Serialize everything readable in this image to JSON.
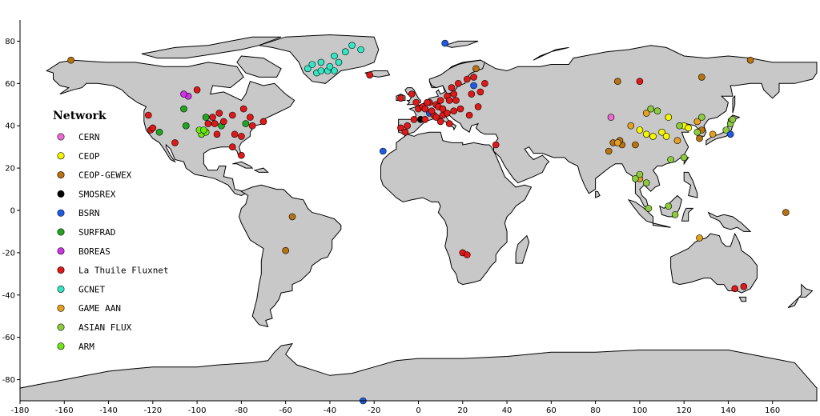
{
  "chart_data": {
    "type": "scatter",
    "xlim": [
      -180,
      180
    ],
    "ylim": [
      -90,
      90
    ],
    "x_ticks": [
      -180,
      -160,
      -140,
      -120,
      -100,
      -80,
      -60,
      -40,
      -20,
      0,
      20,
      40,
      60,
      80,
      100,
      120,
      140,
      160
    ],
    "y_ticks": [
      -80,
      -60,
      -40,
      -20,
      0,
      20,
      40,
      60,
      80
    ],
    "legend": {
      "title": "Network",
      "placement": "left",
      "entries": [
        {
          "name": "CERN",
          "color": "#f06ad6"
        },
        {
          "name": "CEOP",
          "color": "#f5f500"
        },
        {
          "name": "CEOP-GEWEX",
          "color": "#b8720e"
        },
        {
          "name": "SMOSREX",
          "color": "#000000"
        },
        {
          "name": "BSRN",
          "color": "#1c5ae8"
        },
        {
          "name": "SURFRAD",
          "color": "#1fa81f"
        },
        {
          "name": "BOREAS",
          "color": "#d030e6"
        },
        {
          "name": "La Thuile Fluxnet",
          "color": "#e01818"
        },
        {
          "name": "GCNET",
          "color": "#34e6c4"
        },
        {
          "name": "GAME AAN",
          "color": "#e6a020"
        },
        {
          "name": "ASIAN FLUX",
          "color": "#8ccc3c"
        },
        {
          "name": "ARM",
          "color": "#6ee614"
        }
      ]
    },
    "series": [
      {
        "name": "CERN",
        "points": [
          [
            87,
            44
          ]
        ]
      },
      {
        "name": "CEOP",
        "points": [
          [
            100,
            38
          ],
          [
            103,
            36
          ],
          [
            106,
            35
          ],
          [
            110,
            37
          ],
          [
            113,
            44
          ],
          [
            120,
            40
          ],
          [
            122,
            39
          ],
          [
            112,
            35
          ]
        ]
      },
      {
        "name": "CEOP-GEWEX",
        "points": [
          [
            -157,
            71
          ],
          [
            -57,
            -3
          ],
          [
            -60,
            -19
          ],
          [
            26,
            67
          ],
          [
            90,
            61
          ],
          [
            88,
            32
          ],
          [
            92,
            31
          ],
          [
            91,
            33
          ],
          [
            86,
            28
          ],
          [
            98,
            31
          ],
          [
            128,
            63
          ],
          [
            128,
            38
          ],
          [
            127,
            34
          ],
          [
            150,
            71
          ],
          [
            166,
            -1
          ]
        ]
      },
      {
        "name": "SMOSREX",
        "points": [
          [
            1,
            43
          ]
        ]
      },
      {
        "name": "BSRN",
        "points": [
          [
            -16,
            28
          ],
          [
            12,
            79
          ],
          [
            25,
            59
          ],
          [
            141,
            36
          ],
          [
            -25,
            -90
          ],
          [
            5,
            46
          ]
        ]
      },
      {
        "name": "SURFRAD",
        "points": [
          [
            -105,
            40
          ],
          [
            -106,
            48
          ],
          [
            -97,
            37
          ],
          [
            -89,
            40
          ],
          [
            -117,
            37
          ],
          [
            -78,
            41
          ],
          [
            -96,
            44
          ]
        ]
      },
      {
        "name": "BOREAS",
        "points": [
          [
            -104,
            54
          ],
          [
            -106,
            55
          ]
        ]
      },
      {
        "name": "La Thuile Fluxnet",
        "points": [
          [
            -122,
            45
          ],
          [
            -121,
            38
          ],
          [
            -120,
            39
          ],
          [
            -110,
            32
          ],
          [
            -90,
            46
          ],
          [
            -84,
            45
          ],
          [
            -80,
            35
          ],
          [
            -76,
            44
          ],
          [
            -75,
            40
          ],
          [
            -79,
            48
          ],
          [
            -83,
            36
          ],
          [
            -92,
            41
          ],
          [
            -88,
            42
          ],
          [
            -95,
            41
          ],
          [
            -93,
            44
          ],
          [
            -70,
            42
          ],
          [
            -91,
            36
          ],
          [
            -84,
            30
          ],
          [
            -80,
            26
          ],
          [
            -100,
            57
          ],
          [
            -22,
            64
          ],
          [
            -8,
            53
          ],
          [
            -3,
            55
          ],
          [
            -1,
            51
          ],
          [
            0,
            48
          ],
          [
            2,
            49
          ],
          [
            5,
            51
          ],
          [
            8,
            50
          ],
          [
            10,
            52
          ],
          [
            13,
            54
          ],
          [
            16,
            55
          ],
          [
            15,
            58
          ],
          [
            18,
            60
          ],
          [
            22,
            62
          ],
          [
            25,
            63
          ],
          [
            30,
            60
          ],
          [
            -8,
            39
          ],
          [
            -5,
            40
          ],
          [
            -2,
            43
          ],
          [
            3,
            43
          ],
          [
            7,
            45
          ],
          [
            11,
            45
          ],
          [
            13,
            46
          ],
          [
            16,
            47
          ],
          [
            19,
            48
          ],
          [
            10,
            42
          ],
          [
            14,
            41
          ],
          [
            4,
            51
          ],
          [
            6,
            47
          ],
          [
            9,
            49
          ],
          [
            11,
            48
          ],
          [
            8,
            44
          ],
          [
            -6,
            37
          ],
          [
            23,
            45
          ],
          [
            35,
            31
          ],
          [
            27,
            49
          ],
          [
            20,
            -20
          ],
          [
            22,
            -21
          ],
          [
            143,
            -37
          ],
          [
            147,
            -36
          ],
          [
            100,
            61
          ],
          [
            14,
            52
          ],
          [
            17,
            52
          ],
          [
            24,
            55
          ],
          [
            28,
            56
          ],
          [
            3,
            48
          ]
        ]
      },
      {
        "name": "GCNET",
        "points": [
          [
            -50,
            67
          ],
          [
            -48,
            69
          ],
          [
            -46,
            65
          ],
          [
            -44,
            66
          ],
          [
            -41,
            66
          ],
          [
            -38,
            66
          ],
          [
            -36,
            70
          ],
          [
            -33,
            75
          ],
          [
            -38,
            73
          ],
          [
            -30,
            78
          ],
          [
            -26,
            76
          ],
          [
            -44,
            70
          ],
          [
            -40,
            68
          ]
        ]
      },
      {
        "name": "GAME AAN",
        "points": [
          [
            96,
            40
          ],
          [
            103,
            46
          ],
          [
            90,
            32
          ],
          [
            100,
            15
          ],
          [
            127,
            -13
          ],
          [
            117,
            33
          ],
          [
            126,
            42
          ],
          [
            133,
            36
          ]
        ]
      },
      {
        "name": "ASIAN FLUX",
        "points": [
          [
            98,
            15
          ],
          [
            100,
            17
          ],
          [
            103,
            13
          ],
          [
            105,
            48
          ],
          [
            118,
            40
          ],
          [
            126,
            37
          ],
          [
            116,
            -2
          ],
          [
            113,
            2
          ],
          [
            114,
            24
          ],
          [
            120,
            25
          ],
          [
            128,
            44
          ],
          [
            141,
            41
          ],
          [
            142,
            43
          ],
          [
            139,
            38
          ],
          [
            104,
            1
          ],
          [
            108,
            47
          ]
        ]
      },
      {
        "name": "ARM",
        "points": [
          [
            -97,
            37
          ],
          [
            -98,
            36
          ],
          [
            -96,
            37
          ],
          [
            -99,
            38
          ],
          [
            -97,
            38
          ]
        ]
      }
    ]
  }
}
